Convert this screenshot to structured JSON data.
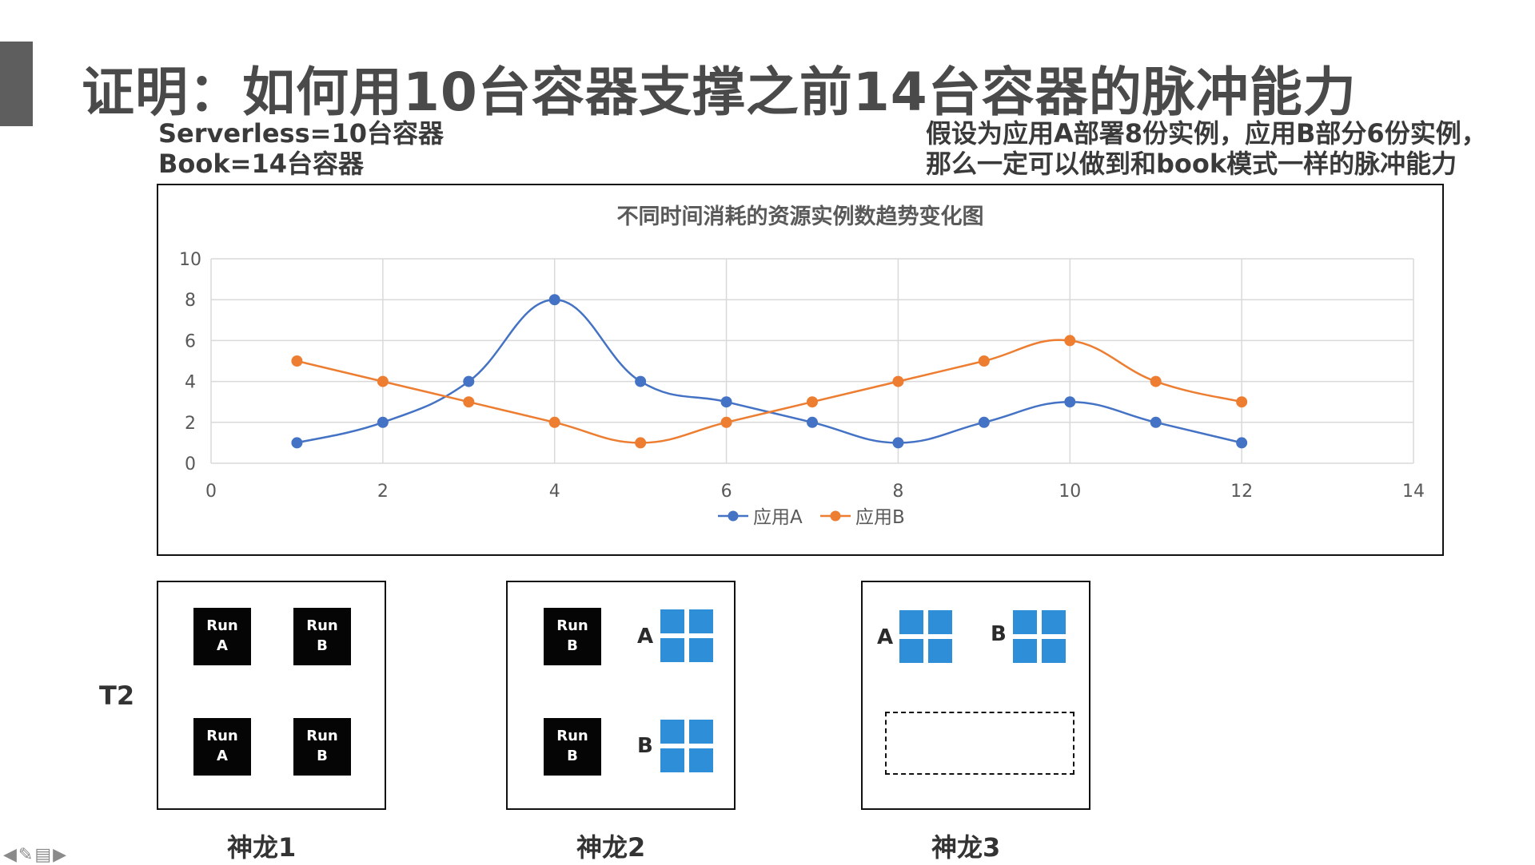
{
  "slide": {
    "title": "证明：如何用10台容器支撑之前14台容器的脉冲能力",
    "left_notes": [
      "Serverless=10台容器",
      "Book=14台容器"
    ],
    "right_notes": [
      "假设为应用A部署8份实例，应用B部分6份实例，",
      "那么一定可以做到和book模式一样的脉冲能力"
    ],
    "row_label": "T2"
  },
  "chart_data": {
    "type": "line",
    "title": "不同时间消耗的资源实例数趋势变化图",
    "xlabel": "",
    "ylabel": "",
    "xlim": [
      0,
      14
    ],
    "ylim": [
      0,
      10
    ],
    "xticks": [
      0,
      2,
      4,
      6,
      8,
      10,
      12,
      14
    ],
    "yticks": [
      0,
      2,
      4,
      6,
      8,
      10
    ],
    "grid": true,
    "smooth": true,
    "legend_position": "bottom",
    "series": [
      {
        "name": "应用A",
        "color": "#4472c4",
        "x": [
          1,
          2,
          3,
          4,
          5,
          6,
          7,
          8,
          9,
          10,
          11,
          12
        ],
        "y": [
          1,
          2,
          4,
          8,
          4,
          3,
          2,
          1,
          2,
          3,
          2,
          1
        ]
      },
      {
        "name": "应用B",
        "color": "#ed7d31",
        "x": [
          1,
          2,
          3,
          4,
          5,
          6,
          7,
          8,
          9,
          10,
          11,
          12
        ],
        "y": [
          5,
          4,
          3,
          2,
          1,
          2,
          3,
          4,
          5,
          6,
          4,
          3
        ]
      }
    ]
  },
  "nodes": [
    {
      "label": "神龙1",
      "runs": [
        [
          "Run",
          "A"
        ],
        [
          "Run",
          "B"
        ],
        [
          "Run",
          "A"
        ],
        [
          "Run",
          "B"
        ]
      ]
    },
    {
      "label": "神龙2",
      "runs": [
        [
          "Run",
          "B"
        ],
        [
          "Run",
          "B"
        ]
      ],
      "groups": [
        "A",
        "B"
      ]
    },
    {
      "label": "神龙3",
      "groups": [
        "A",
        "B"
      ]
    }
  ],
  "colors": {
    "instance_block": "#2e8fd8",
    "run_block": "#050505"
  },
  "nav_icons": [
    "arrow-left-icon",
    "pen-icon",
    "menu-icon",
    "arrow-right-icon"
  ]
}
